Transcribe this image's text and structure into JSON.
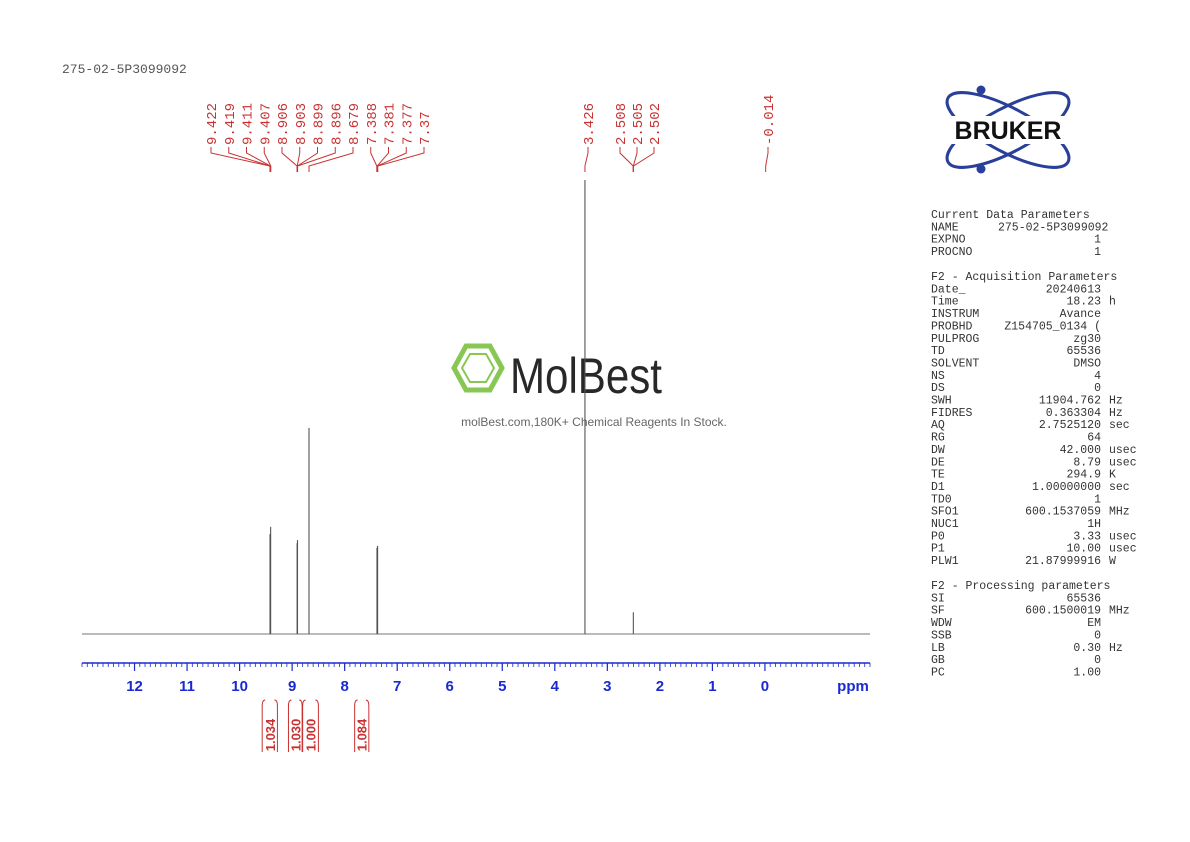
{
  "header": {
    "sample": "275-02-5P3099092"
  },
  "chart_data": {
    "type": "nmr",
    "x_label": "ppm",
    "xlim": [
      13,
      -2
    ],
    "xticks": [
      12,
      11,
      10,
      9,
      8,
      7,
      6,
      5,
      4,
      3,
      2,
      1,
      0
    ],
    "ylim": [
      0,
      100
    ],
    "color": "#555555",
    "peaks": {
      "x": [
        9.421,
        9.409,
        8.905,
        8.898,
        8.679,
        7.385,
        7.373,
        3.426,
        2.505
      ],
      "values": [
        22,
        23.6,
        20,
        20.7,
        45.4,
        19,
        19.4,
        100,
        4.8
      ]
    },
    "peak_labels": [
      9.422,
      9.419,
      9.411,
      9.407,
      8.906,
      8.903,
      8.899,
      8.896,
      8.679,
      7.388,
      7.381,
      7.377,
      7.37,
      3.426,
      2.508,
      2.505,
      2.502,
      -0.014
    ],
    "label_color": "#c83232",
    "integrals": {
      "ranges": [
        [
          9.57,
          9.28
        ],
        [
          9.07,
          8.81
        ],
        [
          8.8,
          8.5
        ],
        [
          7.81,
          7.54
        ]
      ],
      "values": [
        1.034,
        1.03,
        1,
        1.084
      ],
      "value_labels": [
        "1.034",
        "1.030",
        "1.000",
        "1.084"
      ]
    }
  },
  "logo": "BRUKER",
  "watermark": {
    "brand": "MolBest",
    "tagline": "molBest.com,180K+ Chemical Reagents In Stock."
  },
  "parameters": [
    {
      "title": "Current Data Parameters",
      "rows": [
        [
          "NAME",
          "275-02-5P3099092",
          ""
        ],
        [
          "EXPNO",
          "1",
          ""
        ],
        [
          "PROCNO",
          "1",
          ""
        ]
      ]
    },
    {
      "title": "F2 - Acquisition Parameters",
      "rows": [
        [
          "Date_",
          "20240613",
          ""
        ],
        [
          "Time",
          "18.23",
          "h"
        ],
        [
          "INSTRUM",
          "Avance",
          ""
        ],
        [
          "PROBHD",
          "Z154705_0134 (",
          ""
        ],
        [
          "PULPROG",
          "zg30",
          ""
        ],
        [
          "TD",
          "65536",
          ""
        ],
        [
          "SOLVENT",
          "DMSO",
          ""
        ],
        [
          "NS",
          "4",
          ""
        ],
        [
          "DS",
          "0",
          ""
        ],
        [
          "SWH",
          "11904.762",
          "Hz"
        ],
        [
          "FIDRES",
          "0.363304",
          "Hz"
        ],
        [
          "AQ",
          "2.7525120",
          "sec"
        ],
        [
          "RG",
          "64",
          ""
        ],
        [
          "DW",
          "42.000",
          "usec"
        ],
        [
          "DE",
          "8.79",
          "usec"
        ],
        [
          "TE",
          "294.9",
          "K"
        ],
        [
          "D1",
          "1.00000000",
          "sec"
        ],
        [
          "TD0",
          "1",
          ""
        ],
        [
          "SFO1",
          "600.1537059",
          "MHz"
        ],
        [
          "NUC1",
          "1H",
          ""
        ],
        [
          "P0",
          "3.33",
          "usec"
        ],
        [
          "P1",
          "10.00",
          "usec"
        ],
        [
          "PLW1",
          "21.87999916",
          "W"
        ]
      ]
    },
    {
      "title": "F2 - Processing parameters",
      "rows": [
        [
          "SI",
          "65536",
          ""
        ],
        [
          "SF",
          "600.1500019",
          "MHz"
        ],
        [
          "WDW",
          "EM",
          ""
        ],
        [
          "SSB",
          "0",
          ""
        ],
        [
          "LB",
          "0.30",
          "Hz"
        ],
        [
          "GB",
          "0",
          ""
        ],
        [
          "PC",
          "1.00",
          ""
        ]
      ]
    }
  ]
}
